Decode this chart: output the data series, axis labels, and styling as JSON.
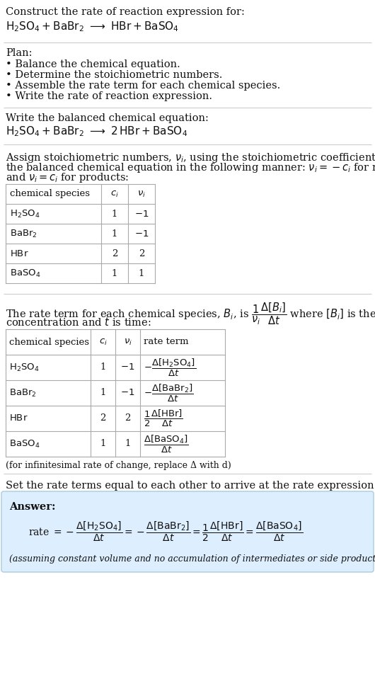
{
  "bg_color": "#ffffff",
  "title_line1": "Construct the rate of reaction expression for:",
  "plan_header": "Plan:",
  "plan_items": [
    "• Balance the chemical equation.",
    "• Determine the stoichiometric numbers.",
    "• Assemble the rate term for each chemical species.",
    "• Write the rate of reaction expression."
  ],
  "balanced_header": "Write the balanced chemical equation:",
  "stoich_text1": "Assign stoichiometric numbers, $\\nu_i$, using the stoichiometric coefficients, $c_i$, from",
  "stoich_text2": "the balanced chemical equation in the following manner: $\\nu_i = -c_i$ for reactants",
  "stoich_text3": "and $\\nu_i = c_i$ for products:",
  "rate_text1": "The rate term for each chemical species, $B_i$, is $\\frac{1}{\\nu_i}\\frac{\\Delta[B_i]}{\\Delta t}$ where $[B_i]$ is the amount",
  "rate_text2": "concentration and $t$ is time:",
  "set_header": "Set the rate terms equal to each other to arrive at the rate expression:",
  "answer_label": "Answer:",
  "answer_note": "(assuming constant volume and no accumulation of intermediates or side products)",
  "inf_note": "(for infinitesimal rate of change, replace Δ with d)",
  "answer_box_color": "#ddeeff",
  "answer_box_border": "#aaccdd",
  "table_border_color": "#aaaaaa",
  "sep_color": "#cccccc",
  "text_color": "#111111",
  "fs": 10.5,
  "fs_small": 9.5,
  "fs_tiny": 9.0
}
